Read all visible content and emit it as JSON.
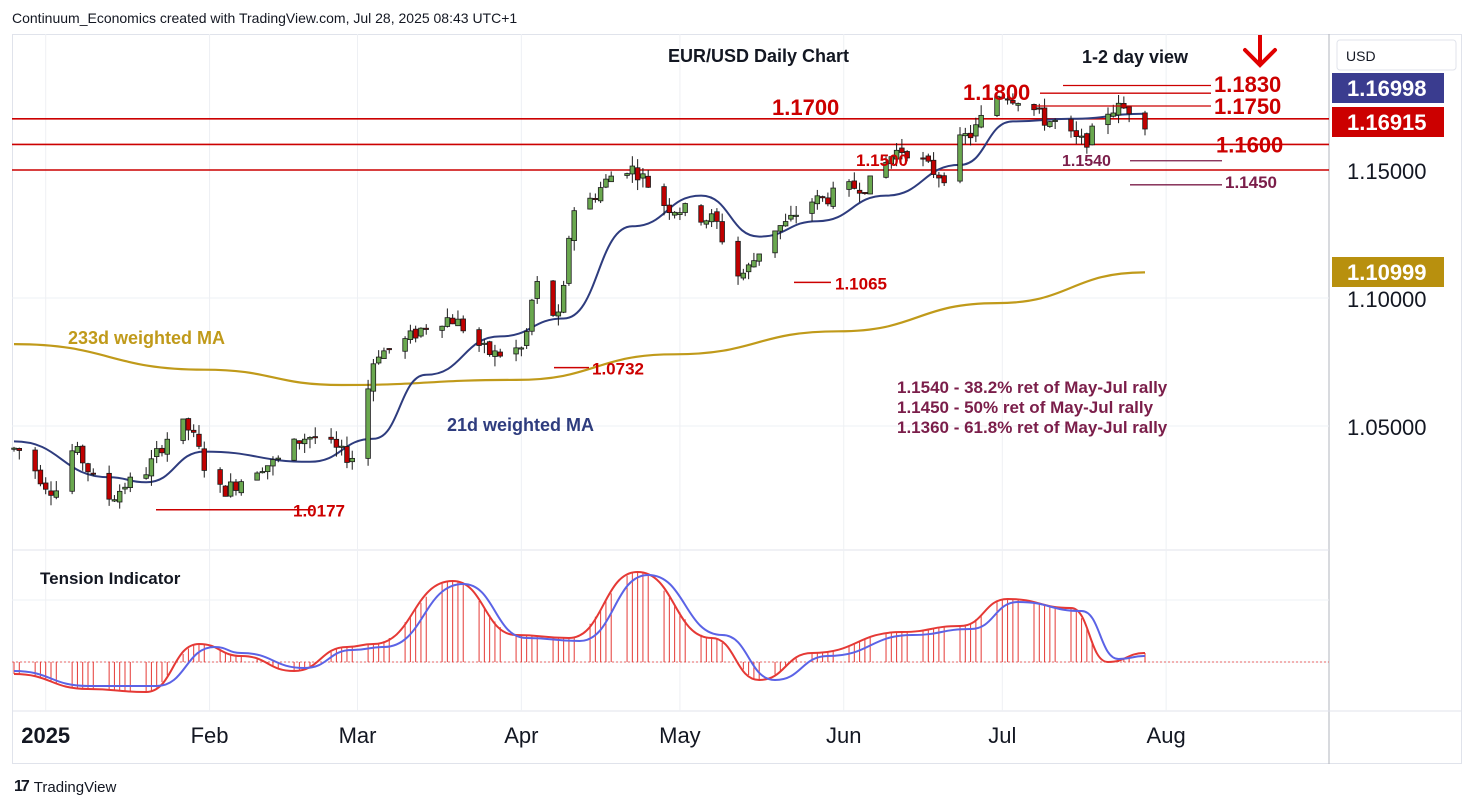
{
  "header": {
    "credit": "Continuum_Economics created with TradingView.com, Jul 28, 2025 08:43 UTC+1"
  },
  "footer": {
    "brand": "TradingView",
    "logo_icon": "tradingview-logo-icon"
  },
  "colors": {
    "up_candle": "#6aa84f",
    "down_candle": "#c00000",
    "level_line": "#cc0000",
    "ma21": "#2e3c7e",
    "ma233": "#c09a1a",
    "fib_text": "#7b1e4a",
    "tension_fill": "#e53935",
    "tension_signal": "#5b63e6",
    "badge_blue": "#3a3c8f",
    "badge_red": "#cc0000",
    "badge_gold": "#b8900e"
  },
  "chart_data": {
    "type": "candlestick",
    "title": "EUR/USD Daily Chart",
    "subtitle": "1-2 day view",
    "currency_label": "USD",
    "y_ticks": [
      {
        "value": 1.15,
        "label": "1.15000"
      },
      {
        "value": 1.1,
        "label": "1.10000"
      },
      {
        "value": 1.05,
        "label": "1.05000"
      }
    ],
    "price_badges": [
      {
        "value": 1.16998,
        "label": "1.16998",
        "color": "blue"
      },
      {
        "value": 1.16915,
        "label": "1.16915",
        "color": "red"
      },
      {
        "value": 1.10999,
        "label": "1.10999",
        "color": "gold"
      }
    ],
    "x_ticks": [
      {
        "date": "2025-01-01",
        "label": "2025",
        "bold": true
      },
      {
        "date": "2025-02-01",
        "label": "Feb"
      },
      {
        "date": "2025-03-01",
        "label": "Mar"
      },
      {
        "date": "2025-04-01",
        "label": "Apr"
      },
      {
        "date": "2025-05-01",
        "label": "May"
      },
      {
        "date": "2025-06-01",
        "label": "Jun"
      },
      {
        "date": "2025-07-01",
        "label": "Jul"
      },
      {
        "date": "2025-08-01",
        "label": "Aug"
      }
    ],
    "horizontal_levels": [
      {
        "value": 1.17,
        "label": "1.1700"
      },
      {
        "value": 1.16,
        "label": "1.1600"
      },
      {
        "value": 1.15,
        "label": "1.1500"
      }
    ],
    "resistance_labels": [
      {
        "value": 1.183,
        "label": "1.1830"
      },
      {
        "value": 1.18,
        "label": "1.1800"
      },
      {
        "value": 1.175,
        "label": "1.1750"
      }
    ],
    "low_labels": [
      {
        "value": 1.0177,
        "label": "1.0177"
      },
      {
        "value": 1.0732,
        "label": "1.0732"
      },
      {
        "value": 1.1065,
        "label": "1.1065"
      }
    ],
    "retracement_levels": [
      {
        "value": 1.154,
        "label": "1.1540"
      },
      {
        "value": 1.145,
        "label": "1.1450"
      }
    ],
    "fib_notes": [
      "1.1540 - 38.2% ret of May-Jul rally",
      "1.1450 - 50% ret of May-Jul rally",
      "1.1360 - 61.8% ret of May-Jul rally"
    ],
    "ma_labels": {
      "ma233": "233d weighted MA",
      "ma21": "21d weighted MA"
    },
    "view_arrow": "down-arrow-icon",
    "price_anchors": [
      [
        "2024-12-26",
        1.041
      ],
      [
        "2025-01-03",
        1.025
      ],
      [
        "2025-01-06",
        1.04
      ],
      [
        "2025-01-13",
        1.022
      ],
      [
        "2025-01-17",
        1.028
      ],
      [
        "2025-01-27",
        1.05
      ],
      [
        "2025-02-03",
        1.025
      ],
      [
        "2025-02-12",
        1.035
      ],
      [
        "2025-02-20",
        1.046
      ],
      [
        "2025-02-28",
        1.038
      ],
      [
        "2025-03-05",
        1.079
      ],
      [
        "2025-03-18",
        1.092
      ],
      [
        "2025-03-27",
        1.078
      ],
      [
        "2025-04-01",
        1.08
      ],
      [
        "2025-04-04",
        1.105
      ],
      [
        "2025-04-08",
        1.092
      ],
      [
        "2025-04-11",
        1.135
      ],
      [
        "2025-04-21",
        1.151
      ],
      [
        "2025-04-30",
        1.135
      ],
      [
        "2025-05-07",
        1.131
      ],
      [
        "2025-05-12",
        1.109
      ],
      [
        "2025-05-20",
        1.128
      ],
      [
        "2025-05-26",
        1.138
      ],
      [
        "2025-06-05",
        1.144
      ],
      [
        "2025-06-12",
        1.158
      ],
      [
        "2025-06-20",
        1.148
      ],
      [
        "2025-06-24",
        1.163
      ],
      [
        "2025-07-01",
        1.18
      ],
      [
        "2025-07-04",
        1.178
      ],
      [
        "2025-07-10",
        1.169
      ],
      [
        "2025-07-16",
        1.161
      ],
      [
        "2025-07-22",
        1.174
      ],
      [
        "2025-07-25",
        1.174
      ],
      [
        "2025-07-28",
        1.169
      ]
    ],
    "ma21": [
      [
        "2024-12-26",
        1.044
      ],
      [
        "2025-01-13",
        1.03
      ],
      [
        "2025-01-20",
        1.028
      ],
      [
        "2025-01-31",
        1.04
      ],
      [
        "2025-02-20",
        1.036
      ],
      [
        "2025-03-04",
        1.045
      ],
      [
        "2025-03-14",
        1.07
      ],
      [
        "2025-03-28",
        1.085
      ],
      [
        "2025-04-09",
        1.092
      ],
      [
        "2025-04-22",
        1.128
      ],
      [
        "2025-05-05",
        1.14
      ],
      [
        "2025-05-16",
        1.124
      ],
      [
        "2025-05-27",
        1.13
      ],
      [
        "2025-06-09",
        1.14
      ],
      [
        "2025-06-23",
        1.152
      ],
      [
        "2025-07-03",
        1.169
      ],
      [
        "2025-07-14",
        1.17
      ],
      [
        "2025-07-28",
        1.172
      ]
    ],
    "ma233": [
      [
        "2024-12-26",
        1.082
      ],
      [
        "2025-01-31",
        1.072
      ],
      [
        "2025-02-26",
        1.066
      ],
      [
        "2025-03-31",
        1.068
      ],
      [
        "2025-04-30",
        1.078
      ],
      [
        "2025-05-31",
        1.087
      ],
      [
        "2025-06-30",
        1.098
      ],
      [
        "2025-07-28",
        1.11
      ]
    ],
    "tension": {
      "label": "Tension Indicator",
      "range": [
        -1,
        3
      ],
      "main": [
        [
          "2024-12-26",
          -0.4
        ],
        [
          "2025-01-09",
          -0.9
        ],
        [
          "2025-01-20",
          -1.0
        ],
        [
          "2025-01-30",
          0.6
        ],
        [
          "2025-02-07",
          0.2
        ],
        [
          "2025-02-17",
          -0.3
        ],
        [
          "2025-02-27",
          0.5
        ],
        [
          "2025-03-04",
          0.6
        ],
        [
          "2025-03-19",
          2.7
        ],
        [
          "2025-03-31",
          0.9
        ],
        [
          "2025-04-10",
          0.8
        ],
        [
          "2025-04-23",
          3.0
        ],
        [
          "2025-05-07",
          0.8
        ],
        [
          "2025-05-16",
          -0.6
        ],
        [
          "2025-05-26",
          0.3
        ],
        [
          "2025-06-12",
          1.0
        ],
        [
          "2025-06-23",
          1.2
        ],
        [
          "2025-07-02",
          2.1
        ],
        [
          "2025-07-14",
          1.8
        ],
        [
          "2025-07-21",
          0.0
        ],
        [
          "2025-07-28",
          0.3
        ]
      ],
      "signal": [
        [
          "2024-12-26",
          -0.3
        ],
        [
          "2025-01-09",
          -0.8
        ],
        [
          "2025-01-22",
          -0.8
        ],
        [
          "2025-02-02",
          0.5
        ],
        [
          "2025-02-07",
          0.3
        ],
        [
          "2025-02-19",
          -0.2
        ],
        [
          "2025-02-28",
          0.4
        ],
        [
          "2025-03-06",
          0.5
        ],
        [
          "2025-03-21",
          2.6
        ],
        [
          "2025-04-02",
          0.8
        ],
        [
          "2025-04-12",
          0.7
        ],
        [
          "2025-04-25",
          2.9
        ],
        [
          "2025-05-09",
          0.9
        ],
        [
          "2025-05-19",
          -0.6
        ],
        [
          "2025-05-29",
          0.2
        ],
        [
          "2025-06-14",
          0.9
        ],
        [
          "2025-06-25",
          1.1
        ],
        [
          "2025-07-04",
          2.0
        ],
        [
          "2025-07-16",
          1.7
        ],
        [
          "2025-07-23",
          0.1
        ],
        [
          "2025-07-28",
          0.2
        ]
      ]
    }
  }
}
